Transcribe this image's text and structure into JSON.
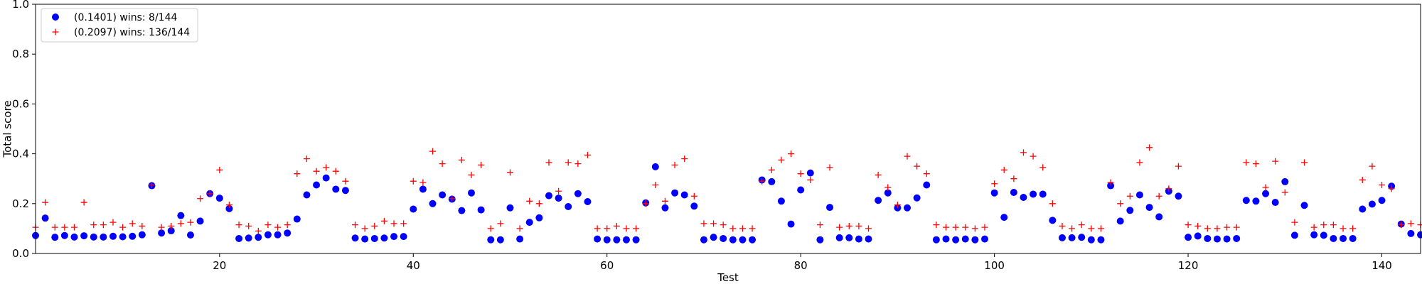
{
  "chart_data": {
    "type": "scatter",
    "title": "",
    "xlabel": "Test",
    "ylabel": "Total score",
    "xlim": [
      1,
      144
    ],
    "ylim": [
      0.0,
      1.0
    ],
    "xticks": [
      20,
      40,
      60,
      80,
      100,
      120,
      140
    ],
    "yticks": [
      0.0,
      0.2,
      0.4,
      0.6,
      0.8,
      1.0
    ],
    "ytick_labels": [
      "0.0",
      "0.2",
      "0.4",
      "0.6",
      "0.8",
      "1.0"
    ],
    "grid": false,
    "legend_position": "top-left",
    "x": [
      1,
      2,
      3,
      4,
      5,
      6,
      7,
      8,
      9,
      10,
      11,
      12,
      13,
      14,
      15,
      16,
      17,
      18,
      19,
      20,
      21,
      22,
      23,
      24,
      25,
      26,
      27,
      28,
      29,
      30,
      31,
      32,
      33,
      34,
      35,
      36,
      37,
      38,
      39,
      40,
      41,
      42,
      43,
      44,
      45,
      46,
      47,
      48,
      49,
      50,
      51,
      52,
      53,
      54,
      55,
      56,
      57,
      58,
      59,
      60,
      61,
      62,
      63,
      64,
      65,
      66,
      67,
      68,
      69,
      70,
      71,
      72,
      73,
      74,
      75,
      76,
      77,
      78,
      79,
      80,
      81,
      82,
      83,
      84,
      85,
      86,
      87,
      88,
      89,
      90,
      91,
      92,
      93,
      94,
      95,
      96,
      97,
      98,
      99,
      100,
      101,
      102,
      103,
      104,
      105,
      106,
      107,
      108,
      109,
      110,
      111,
      112,
      113,
      114,
      115,
      116,
      117,
      118,
      119,
      120,
      121,
      122,
      123,
      124,
      125,
      126,
      127,
      128,
      129,
      130,
      131,
      132,
      133,
      134,
      135,
      136,
      137,
      138,
      139,
      140,
      141,
      142,
      143,
      144
    ],
    "series": [
      {
        "name": "(0.1401) wins: 8/144",
        "marker": "circle",
        "color": "#0000ff",
        "values": [
          0.072,
          0.142,
          0.065,
          0.072,
          0.066,
          0.071,
          0.066,
          0.066,
          0.069,
          0.067,
          0.069,
          0.075,
          0.272,
          0.082,
          0.091,
          0.152,
          0.074,
          0.13,
          0.24,
          0.222,
          0.18,
          0.06,
          0.062,
          0.065,
          0.075,
          0.075,
          0.082,
          0.138,
          0.235,
          0.275,
          0.303,
          0.258,
          0.253,
          0.062,
          0.058,
          0.06,
          0.062,
          0.068,
          0.068,
          0.178,
          0.258,
          0.2,
          0.235,
          0.218,
          0.172,
          0.243,
          0.175,
          0.055,
          0.055,
          0.183,
          0.058,
          0.125,
          0.143,
          0.232,
          0.222,
          0.188,
          0.24,
          0.208,
          0.058,
          0.055,
          0.055,
          0.055,
          0.055,
          0.203,
          0.348,
          0.183,
          0.243,
          0.235,
          0.19,
          0.055,
          0.065,
          0.06,
          0.055,
          0.055,
          0.055,
          0.295,
          0.288,
          0.21,
          0.118,
          0.255,
          0.323,
          0.055,
          0.185,
          0.063,
          0.063,
          0.058,
          0.058,
          0.213,
          0.243,
          0.183,
          0.183,
          0.223,
          0.275,
          0.055,
          0.058,
          0.055,
          0.058,
          0.055,
          0.058,
          0.243,
          0.145,
          0.245,
          0.225,
          0.238,
          0.238,
          0.133,
          0.063,
          0.063,
          0.065,
          0.055,
          0.055,
          0.272,
          0.13,
          0.173,
          0.235,
          0.185,
          0.147,
          0.25,
          0.23,
          0.065,
          0.07,
          0.06,
          0.058,
          0.058,
          0.06,
          0.213,
          0.21,
          0.24,
          0.205,
          0.288,
          0.073,
          0.193,
          0.075,
          0.073,
          0.06,
          0.06,
          0.06,
          0.178,
          0.198,
          0.213,
          0.27,
          0.118,
          0.08,
          0.075
        ]
      },
      {
        "name": "(0.2097) wins: 136/144",
        "marker": "plus",
        "color": "#ff0000",
        "values": [
          0.105,
          0.205,
          0.105,
          0.105,
          0.105,
          0.205,
          0.115,
          0.115,
          0.125,
          0.105,
          0.12,
          0.11,
          0.275,
          0.105,
          0.11,
          0.12,
          0.125,
          0.22,
          0.24,
          0.335,
          0.195,
          0.115,
          0.11,
          0.09,
          0.115,
          0.105,
          0.115,
          0.32,
          0.38,
          0.33,
          0.345,
          0.33,
          0.29,
          0.115,
          0.1,
          0.11,
          0.13,
          0.12,
          0.12,
          0.29,
          0.285,
          0.41,
          0.36,
          0.22,
          0.375,
          0.315,
          0.355,
          0.1,
          0.12,
          0.325,
          0.1,
          0.21,
          0.2,
          0.365,
          0.25,
          0.365,
          0.36,
          0.395,
          0.1,
          0.1,
          0.11,
          0.1,
          0.1,
          0.2,
          0.275,
          0.21,
          0.355,
          0.38,
          0.23,
          0.12,
          0.12,
          0.115,
          0.1,
          0.1,
          0.1,
          0.29,
          0.335,
          0.375,
          0.4,
          0.32,
          0.295,
          0.115,
          0.345,
          0.105,
          0.11,
          0.11,
          0.1,
          0.315,
          0.265,
          0.195,
          0.39,
          0.35,
          0.32,
          0.115,
          0.105,
          0.105,
          0.105,
          0.1,
          0.105,
          0.28,
          0.335,
          0.3,
          0.405,
          0.39,
          0.345,
          0.2,
          0.11,
          0.1,
          0.115,
          0.1,
          0.1,
          0.285,
          0.2,
          0.23,
          0.365,
          0.425,
          0.23,
          0.26,
          0.35,
          0.115,
          0.11,
          0.1,
          0.1,
          0.105,
          0.105,
          0.365,
          0.36,
          0.265,
          0.37,
          0.245,
          0.125,
          0.365,
          0.105,
          0.115,
          0.115,
          0.1,
          0.1,
          0.295,
          0.35,
          0.275,
          0.26,
          0.115,
          0.12,
          0.115
        ]
      }
    ]
  }
}
